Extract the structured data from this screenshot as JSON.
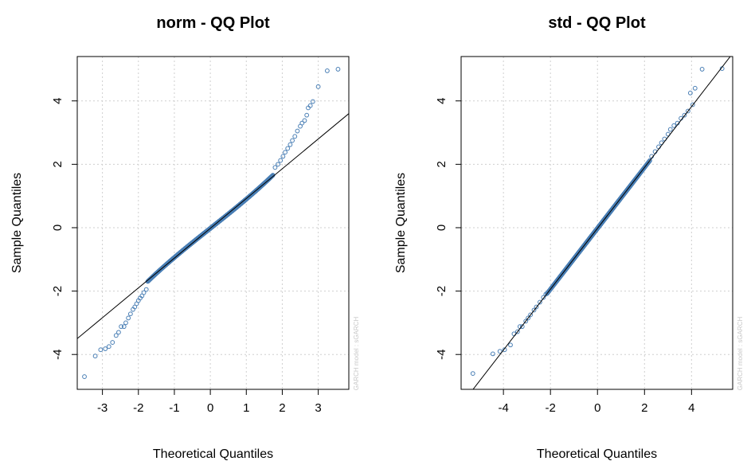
{
  "colors": {
    "points": "#4a7fb5",
    "line": "#000000",
    "grid": "#cfcfcf"
  },
  "chart_data": [
    {
      "type": "scatter",
      "title": "norm - QQ Plot",
      "xlabel": "Theoretical Quantiles",
      "ylabel": "Sample Quantiles",
      "watermark": "GARCH model : sGARCH",
      "xlim": [
        -3.7,
        3.85
      ],
      "ylim": [
        -5.1,
        5.4
      ],
      "xticks": [
        -3,
        -2,
        -1,
        0,
        1,
        2,
        3
      ],
      "yticks": [
        -4,
        -2,
        0,
        2,
        4
      ],
      "grid": true,
      "reference_line": {
        "slope": 0.94,
        "intercept": -0.02
      },
      "tails": {
        "lower": [
          [
            -3.5,
            -4.7
          ],
          [
            -3.2,
            -4.05
          ],
          [
            -3.05,
            -3.85
          ],
          [
            -2.92,
            -3.82
          ],
          [
            -2.82,
            -3.75
          ],
          [
            -2.72,
            -3.62
          ],
          [
            -2.62,
            -3.4
          ],
          [
            -2.55,
            -3.3
          ],
          [
            -2.48,
            -3.12
          ],
          [
            -2.4,
            -3.12
          ],
          [
            -2.35,
            -3.0
          ],
          [
            -2.28,
            -2.85
          ],
          [
            -2.22,
            -2.72
          ],
          [
            -2.15,
            -2.58
          ],
          [
            -2.1,
            -2.5
          ],
          [
            -2.05,
            -2.4
          ],
          [
            -2.0,
            -2.3
          ],
          [
            -1.95,
            -2.22
          ],
          [
            -1.9,
            -2.15
          ],
          [
            -1.85,
            -2.05
          ],
          [
            -1.78,
            -1.95
          ]
        ],
        "upper": [
          [
            1.8,
            1.9
          ],
          [
            1.88,
            2.0
          ],
          [
            1.95,
            2.12
          ],
          [
            2.02,
            2.25
          ],
          [
            2.08,
            2.38
          ],
          [
            2.15,
            2.5
          ],
          [
            2.22,
            2.62
          ],
          [
            2.28,
            2.75
          ],
          [
            2.35,
            2.88
          ],
          [
            2.42,
            3.05
          ],
          [
            2.5,
            3.2
          ],
          [
            2.55,
            3.3
          ],
          [
            2.62,
            3.38
          ],
          [
            2.68,
            3.55
          ],
          [
            2.72,
            3.78
          ],
          [
            2.78,
            3.85
          ],
          [
            2.85,
            3.98
          ],
          [
            3.0,
            4.45
          ],
          [
            3.25,
            4.95
          ],
          [
            3.55,
            5.0
          ]
        ]
      },
      "body": {
        "n": 1000,
        "from": -1.75,
        "to": 1.75,
        "slope": 0.9,
        "curve": 0.06
      }
    },
    {
      "type": "scatter",
      "title": "std - QQ Plot",
      "xlabel": "Theoretical Quantiles",
      "ylabel": "Sample Quantiles",
      "watermark": "GARCH model : sGARCH",
      "xlim": [
        -5.8,
        5.75
      ],
      "ylim": [
        -5.1,
        5.4
      ],
      "xticks": [
        -4,
        -2,
        0,
        2,
        4
      ],
      "yticks": [
        -4,
        -2,
        0,
        2,
        4
      ],
      "grid": true,
      "reference_line": {
        "slope": 0.96,
        "intercept": -0.02
      },
      "tails": {
        "lower": [
          [
            -5.3,
            -4.6
          ],
          [
            -4.45,
            -3.98
          ],
          [
            -4.15,
            -3.9
          ],
          [
            -3.95,
            -3.85
          ],
          [
            -3.7,
            -3.7
          ],
          [
            -3.55,
            -3.35
          ],
          [
            -3.4,
            -3.28
          ],
          [
            -3.3,
            -3.12
          ],
          [
            -3.2,
            -3.12
          ],
          [
            -3.05,
            -2.95
          ],
          [
            -2.95,
            -2.85
          ],
          [
            -2.85,
            -2.75
          ],
          [
            -2.7,
            -2.6
          ],
          [
            -2.6,
            -2.5
          ],
          [
            -2.45,
            -2.35
          ],
          [
            -2.3,
            -2.2
          ],
          [
            -2.2,
            -2.1
          ]
        ],
        "upper": [
          [
            2.3,
            2.25
          ],
          [
            2.45,
            2.4
          ],
          [
            2.6,
            2.55
          ],
          [
            2.72,
            2.68
          ],
          [
            2.85,
            2.8
          ],
          [
            3.0,
            2.95
          ],
          [
            3.1,
            3.1
          ],
          [
            3.25,
            3.22
          ],
          [
            3.4,
            3.3
          ],
          [
            3.55,
            3.45
          ],
          [
            3.7,
            3.55
          ],
          [
            3.85,
            3.68
          ],
          [
            4.05,
            3.88
          ],
          [
            3.95,
            4.25
          ],
          [
            4.15,
            4.4
          ],
          [
            4.45,
            5.0
          ],
          [
            5.3,
            5.02
          ]
        ]
      },
      "body": {
        "n": 1000,
        "from": -2.15,
        "to": 2.25,
        "slope": 0.96,
        "curve": 0.0
      }
    }
  ]
}
